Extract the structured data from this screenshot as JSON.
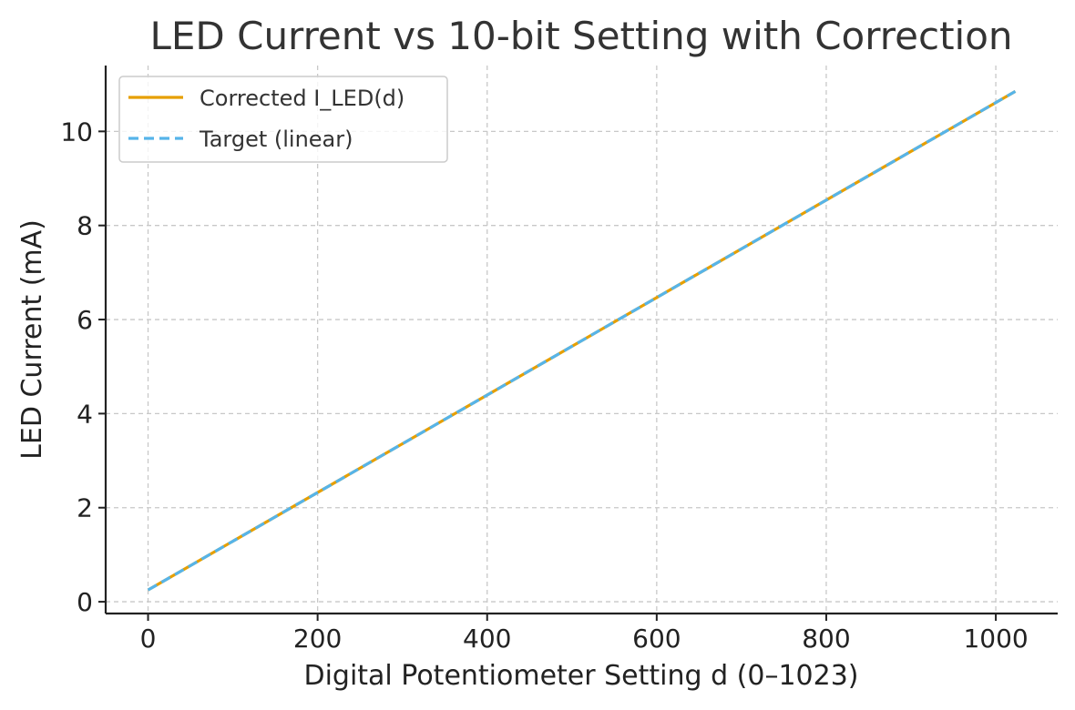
{
  "chart_data": {
    "type": "line",
    "title": "LED Current vs 10-bit Setting with Correction",
    "xlabel": "Digital Potentiometer Setting d (0–1023)",
    "ylabel": "LED Current (mA)",
    "xlim": [
      -50,
      1073
    ],
    "ylim": [
      -0.25,
      11.4
    ],
    "xticks": [
      0,
      200,
      400,
      600,
      800,
      1000
    ],
    "yticks": [
      0,
      2,
      4,
      6,
      8,
      10
    ],
    "grid": true,
    "legend_position": "top-left",
    "series": [
      {
        "name": "Corrected I_LED(d)",
        "color": "#E69F00",
        "style": "solid",
        "x": [
          0,
          1023
        ],
        "y": [
          0.25,
          10.85
        ]
      },
      {
        "name": "Target (linear)",
        "color": "#56B4E9",
        "style": "dashed",
        "x": [
          0,
          1023
        ],
        "y": [
          0.25,
          10.85
        ]
      }
    ]
  }
}
